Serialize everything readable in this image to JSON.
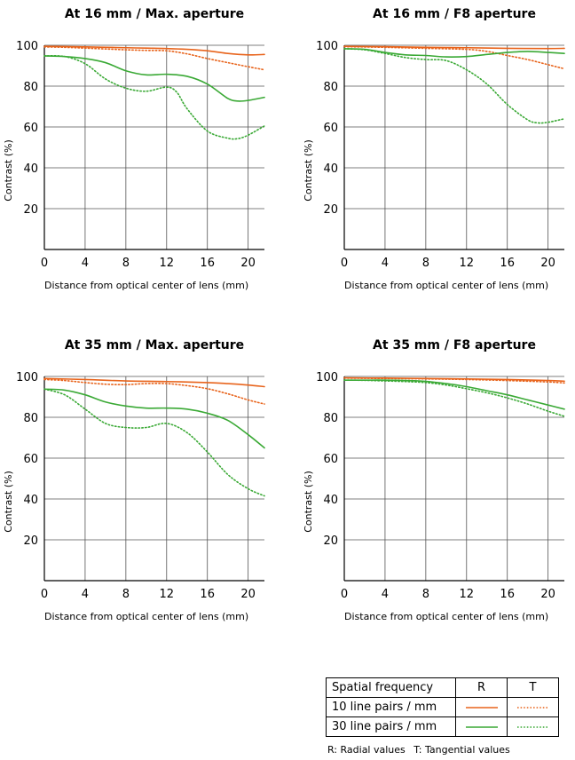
{
  "colors": {
    "r10": "#e8641c",
    "r30": "#3aa935",
    "axis": "#000000",
    "grid": "#555555"
  },
  "legend": {
    "header": "Spatial frequency",
    "col_r": "R",
    "col_t": "T",
    "row_10": "10 line pairs / mm",
    "row_30": "30 line pairs / mm",
    "note_radial": "R: Radial values",
    "note_tangential": "T: Tangential values"
  },
  "chart_data": [
    {
      "type": "line",
      "title": "At 16 mm / Max. aperture",
      "xlabel": "Distance from optical center of lens (mm)",
      "ylabel": "Contrast (%)",
      "xlim": [
        0,
        21.6
      ],
      "ylim": [
        0,
        100
      ],
      "xticks": [
        "0",
        "4",
        "8",
        "12",
        "16",
        "20"
      ],
      "yticks": [
        "20",
        "40",
        "60",
        "80",
        "100"
      ],
      "grid": true,
      "series": [
        {
          "name": "10 line pairs / mm R",
          "style": "solid",
          "color": "r10",
          "x": [
            0,
            2,
            4,
            6,
            8,
            10,
            12,
            14,
            16,
            18,
            20,
            21.6
          ],
          "y": [
            99.5,
            99.4,
            99.2,
            99,
            98.8,
            98.6,
            98.4,
            98,
            97.3,
            96,
            95.3,
            95.5
          ]
        },
        {
          "name": "10 line pairs / mm T",
          "style": "dotted",
          "color": "r10",
          "x": [
            0,
            2,
            4,
            6,
            8,
            10,
            12,
            14,
            16,
            18,
            20,
            21.6
          ],
          "y": [
            99.2,
            99,
            98.6,
            98.2,
            97.8,
            97.5,
            97.3,
            95.8,
            93.5,
            91.5,
            89.5,
            88
          ]
        },
        {
          "name": "30 line pairs / mm R",
          "style": "solid",
          "color": "r30",
          "x": [
            0,
            2,
            4,
            6,
            8,
            10,
            12,
            14,
            16,
            18,
            19,
            20,
            21.6
          ],
          "y": [
            94.8,
            94.5,
            93.5,
            91.5,
            87.5,
            85.5,
            85.8,
            84.8,
            81,
            74,
            72.7,
            73,
            74.5
          ]
        },
        {
          "name": "30 line pairs / mm T",
          "style": "dotted",
          "color": "r30",
          "x": [
            0,
            2,
            4,
            6,
            8,
            10,
            12,
            13,
            14,
            16,
            18,
            19,
            20,
            21.6
          ],
          "y": [
            94.8,
            94.5,
            91,
            83.5,
            79,
            77.5,
            79.5,
            77,
            69,
            58,
            54.5,
            54.3,
            56,
            60.5
          ]
        }
      ]
    },
    {
      "type": "line",
      "title": "At 16 mm / F8 aperture",
      "xlabel": "Distance from optical center of lens (mm)",
      "ylabel": "Contrast (%)",
      "xlim": [
        0,
        21.6
      ],
      "ylim": [
        0,
        100
      ],
      "xticks": [
        "0",
        "4",
        "8",
        "12",
        "16",
        "20"
      ],
      "yticks": [
        "20",
        "40",
        "60",
        "80",
        "100"
      ],
      "grid": true,
      "series": [
        {
          "name": "10 line pairs / mm R",
          "style": "solid",
          "color": "r10",
          "x": [
            0,
            4,
            8,
            12,
            16,
            20,
            21.6
          ],
          "y": [
            99.5,
            99.3,
            99,
            98.8,
            98.5,
            98.4,
            98.5
          ]
        },
        {
          "name": "10 line pairs / mm T",
          "style": "dotted",
          "color": "r10",
          "x": [
            0,
            4,
            8,
            12,
            14,
            16,
            18,
            20,
            21.6
          ],
          "y": [
            99.3,
            99,
            98.5,
            98,
            97,
            95,
            93,
            90.5,
            88.5
          ]
        },
        {
          "name": "30 line pairs / mm R",
          "style": "solid",
          "color": "r30",
          "x": [
            0,
            2,
            4,
            6,
            8,
            10,
            12,
            14,
            16,
            18,
            20,
            21.6
          ],
          "y": [
            98.3,
            98,
            96.5,
            95.3,
            95,
            94.3,
            94.5,
            95.5,
            96.5,
            97,
            96.5,
            96
          ]
        },
        {
          "name": "30 line pairs / mm T",
          "style": "dotted",
          "color": "r30",
          "x": [
            0,
            2,
            4,
            6,
            8,
            10,
            12,
            14,
            16,
            18,
            19,
            20,
            21.6
          ],
          "y": [
            98.3,
            97.8,
            96,
            94,
            93,
            92.5,
            88,
            81,
            71,
            63.5,
            62,
            62.3,
            64
          ]
        }
      ]
    },
    {
      "type": "line",
      "title": "At 35 mm / Max. aperture",
      "xlabel": "Distance from optical center of lens (mm)",
      "ylabel": "Contrast (%)",
      "xlim": [
        0,
        21.6
      ],
      "ylim": [
        0,
        100
      ],
      "xticks": [
        "0",
        "4",
        "8",
        "12",
        "16",
        "20"
      ],
      "yticks": [
        "20",
        "40",
        "60",
        "80",
        "100"
      ],
      "grid": true,
      "series": [
        {
          "name": "10 line pairs / mm R",
          "style": "solid",
          "color": "r10",
          "x": [
            0,
            4,
            8,
            12,
            16,
            18,
            20,
            21.6
          ],
          "y": [
            99,
            98.5,
            97.8,
            97.5,
            97,
            96.5,
            95.8,
            95
          ]
        },
        {
          "name": "10 line pairs / mm T",
          "style": "dotted",
          "color": "r10",
          "x": [
            0,
            2,
            4,
            6,
            8,
            10,
            12,
            14,
            16,
            18,
            20,
            21.6
          ],
          "y": [
            98.5,
            98,
            97,
            96.2,
            96,
            96.5,
            96.5,
            95.5,
            94,
            91.5,
            88.5,
            86.5
          ]
        },
        {
          "name": "30 line pairs / mm R",
          "style": "solid",
          "color": "r30",
          "x": [
            0,
            2,
            4,
            6,
            8,
            10,
            12,
            14,
            16,
            18,
            20,
            21.6
          ],
          "y": [
            93.8,
            93.3,
            91,
            87.5,
            85.5,
            84.5,
            84.5,
            84,
            82,
            78.5,
            71.5,
            65
          ]
        },
        {
          "name": "30 line pairs / mm T",
          "style": "dotted",
          "color": "r30",
          "x": [
            0,
            2,
            4,
            6,
            8,
            10,
            12,
            14,
            16,
            18,
            20,
            21.6
          ],
          "y": [
            93.8,
            91,
            84,
            77,
            75,
            75,
            77,
            72.5,
            63,
            52,
            45,
            41.5
          ]
        }
      ]
    },
    {
      "type": "line",
      "title": "At 35 mm / F8 aperture",
      "xlabel": "Distance from optical center of lens (mm)",
      "ylabel": "Contrast (%)",
      "xlim": [
        0,
        21.6
      ],
      "ylim": [
        0,
        100
      ],
      "xticks": [
        "0",
        "4",
        "8",
        "12",
        "16",
        "20"
      ],
      "yticks": [
        "20",
        "40",
        "60",
        "80",
        "100"
      ],
      "grid": true,
      "series": [
        {
          "name": "10 line pairs / mm R",
          "style": "solid",
          "color": "r10",
          "x": [
            0,
            4,
            8,
            12,
            16,
            20,
            21.6
          ],
          "y": [
            99.3,
            99.2,
            99,
            98.8,
            98.5,
            98,
            97.7
          ]
        },
        {
          "name": "10 line pairs / mm T",
          "style": "dotted",
          "color": "r10",
          "x": [
            0,
            4,
            8,
            12,
            16,
            20,
            21.6
          ],
          "y": [
            99.2,
            99,
            98.8,
            98.5,
            98,
            97.3,
            96.8
          ]
        },
        {
          "name": "30 line pairs / mm R",
          "style": "solid",
          "color": "r30",
          "x": [
            0,
            2,
            4,
            6,
            8,
            10,
            12,
            14,
            16,
            18,
            20,
            21.6
          ],
          "y": [
            98.2,
            98.2,
            98.2,
            98,
            97.6,
            96.5,
            95,
            93,
            91,
            88.5,
            86,
            84
          ]
        },
        {
          "name": "30 line pairs / mm T",
          "style": "dotted",
          "color": "r30",
          "x": [
            0,
            2,
            4,
            6,
            8,
            10,
            12,
            14,
            16,
            18,
            20,
            21.6
          ],
          "y": [
            98.2,
            98.1,
            97.8,
            97.5,
            97,
            95.8,
            94,
            92,
            89.5,
            86.5,
            83,
            80.5
          ]
        }
      ]
    }
  ]
}
